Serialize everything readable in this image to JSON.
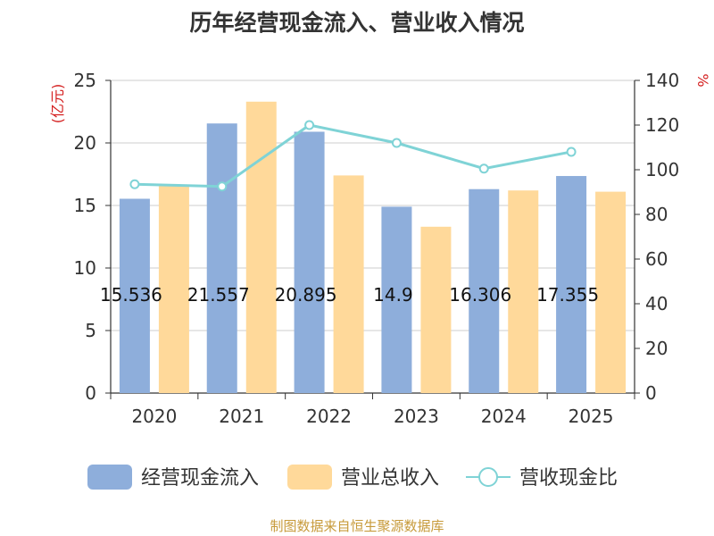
{
  "chart_data": {
    "type": "bar",
    "title": "历年经营现金流入、营业收入情况",
    "categories": [
      "2020",
      "2021",
      "2022",
      "2023",
      "2024",
      "2025"
    ],
    "y_left": {
      "label": "(亿元)",
      "min": 0,
      "max": 25,
      "ticks": [
        0,
        5,
        10,
        15,
        20,
        25
      ]
    },
    "y_right": {
      "label": "%",
      "min": 0,
      "max": 140,
      "ticks": [
        0,
        20,
        40,
        60,
        80,
        100,
        120,
        140
      ]
    },
    "grid": true,
    "legend_position": "bottom",
    "series": [
      {
        "name": "经营现金流入",
        "type": "bar",
        "axis": "left",
        "color": "#8eaedb",
        "values": [
          15.536,
          21.557,
          20.895,
          14.9,
          16.306,
          17.355
        ],
        "labels": [
          "15.536",
          "21.557",
          "20.895",
          "14.9",
          "16.306",
          "17.355"
        ]
      },
      {
        "name": "营业总收入",
        "type": "bar",
        "axis": "left",
        "color": "#ffd99a",
        "values": [
          16.6,
          23.3,
          17.4,
          13.3,
          16.2,
          16.1
        ]
      },
      {
        "name": "营收现金比",
        "type": "line",
        "axis": "right",
        "color": "#7fd3d6",
        "values": [
          93.5,
          92.5,
          120.0,
          112.0,
          100.5,
          108.0
        ]
      }
    ]
  },
  "source_note": "制图数据来自恒生聚源数据库"
}
